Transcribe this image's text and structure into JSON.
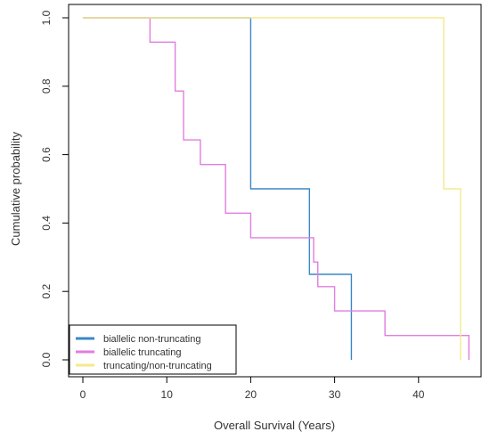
{
  "chart_data": {
    "type": "line",
    "title": "",
    "xlabel": "Overall Survival (Years)",
    "ylabel": "Cumulative probability",
    "xlim": [
      0,
      46
    ],
    "ylim": [
      0,
      1
    ],
    "xticks": [
      0,
      10,
      20,
      30,
      40
    ],
    "yticks": [
      0.0,
      0.2,
      0.4,
      0.6,
      0.8,
      1.0
    ],
    "xtick_labels": [
      "0",
      "10",
      "20",
      "30",
      "40"
    ],
    "ytick_labels": [
      "0.0",
      "0.2",
      "0.4",
      "0.6",
      "0.8",
      "1.0"
    ],
    "step": true,
    "grid": false,
    "legend_position": "bottom-left",
    "series": [
      {
        "name": "biallelic non-truncating",
        "color": "#3a87c8",
        "x": [
          0,
          20,
          27,
          32
        ],
        "y": [
          1.0,
          0.5,
          0.25,
          0.0
        ]
      },
      {
        "name": "biallelic truncating",
        "color": "#e07ee0",
        "x": [
          0,
          8,
          11,
          12,
          14,
          17,
          20,
          27,
          27.5,
          28,
          30,
          36,
          46
        ],
        "y": [
          1.0,
          0.929,
          0.786,
          0.643,
          0.571,
          0.429,
          0.357,
          0.357,
          0.286,
          0.214,
          0.143,
          0.071,
          0.0
        ]
      },
      {
        "name": "truncating/non-truncating",
        "color": "#f5e98a",
        "x": [
          0,
          43,
          45
        ],
        "y": [
          1.0,
          0.5,
          0.0
        ]
      }
    ]
  }
}
